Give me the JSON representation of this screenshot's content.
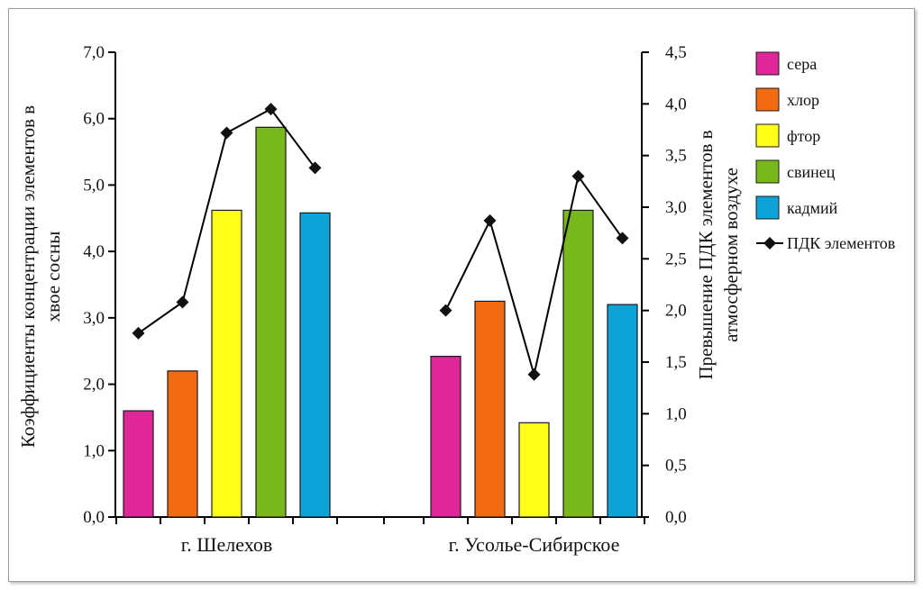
{
  "chart_data": {
    "type": "bar",
    "categories": [
      "г. Шелехов",
      "г. Усолье-Сибирское"
    ],
    "series": [
      {
        "name": "сера",
        "values": [
          1.6,
          2.42
        ],
        "color": "#e0279a"
      },
      {
        "name": "хлор",
        "values": [
          2.2,
          3.25
        ],
        "color": "#f26a12"
      },
      {
        "name": "фтор",
        "values": [
          4.62,
          1.42
        ],
        "color": "#ffff1a"
      },
      {
        "name": "свинец",
        "values": [
          5.87,
          4.62
        ],
        "color": "#78b81c"
      },
      {
        "name": "кадмий",
        "values": [
          4.58,
          3.2
        ],
        "color": "#0da3d6"
      }
    ],
    "line_series": {
      "name": "ПДК элементов",
      "values": [
        [
          1.78,
          2.08,
          3.72,
          3.95,
          3.38
        ],
        [
          2.0,
          2.87,
          1.38,
          3.3,
          2.7
        ]
      ],
      "color": "#000000",
      "axis": "right"
    },
    "ylabel": "Коэффициенты концентрации элементов в хвое сосны",
    "ylabel_right": "Превышение ПДК элементов в атмосферном воздухе",
    "ylim": [
      0,
      7
    ],
    "ylim_right": [
      0,
      4.5
    ],
    "yticks": [
      "0,0",
      "1,0",
      "2,0",
      "3,0",
      "4,0",
      "5,0",
      "6,0",
      "7,0"
    ],
    "yticks_right": [
      "0,0",
      "0,5",
      "1,0",
      "1,5",
      "2,0",
      "2,5",
      "3,0",
      "3,5",
      "4,0",
      "4,5"
    ],
    "legend_position": "right",
    "grid": false
  }
}
